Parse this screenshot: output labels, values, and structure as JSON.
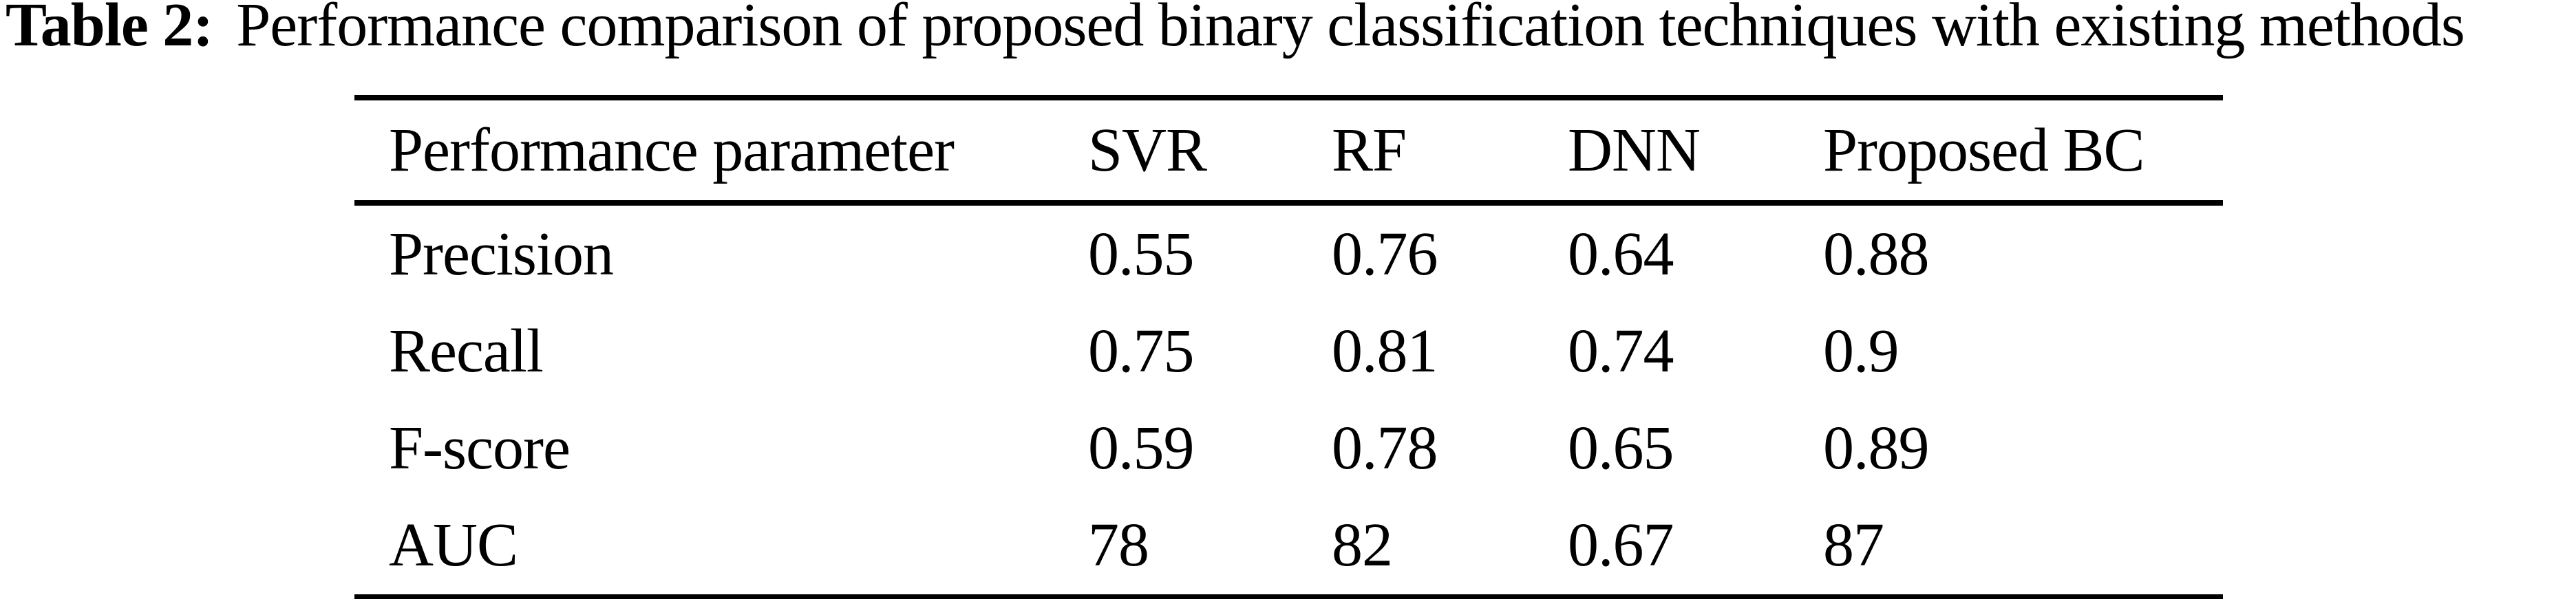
{
  "title": {
    "label": "Table 2:",
    "caption": "Performance comparison of proposed binary classification techniques with existing methods"
  },
  "table": {
    "columns": {
      "parameter": "Performance parameter",
      "svr": "SVR",
      "rf": "RF",
      "dnn": "DNN",
      "proposed_bc": "Proposed BC"
    },
    "rows": [
      {
        "parameter": "Precision",
        "svr": "0.55",
        "rf": "0.76",
        "dnn": "0.64",
        "proposed_bc": "0.88"
      },
      {
        "parameter": "Recall",
        "svr": "0.75",
        "rf": "0.81",
        "dnn": "0.74",
        "proposed_bc": "0.9"
      },
      {
        "parameter": "F-score",
        "svr": "0.59",
        "rf": "0.78",
        "dnn": "0.65",
        "proposed_bc": "0.89"
      },
      {
        "parameter": "AUC",
        "svr": "78",
        "rf": "82",
        "dnn": "0.67",
        "proposed_bc": "87"
      }
    ]
  },
  "colors": {
    "text": "#000000",
    "background": "#ffffff",
    "rule": "#000000"
  }
}
